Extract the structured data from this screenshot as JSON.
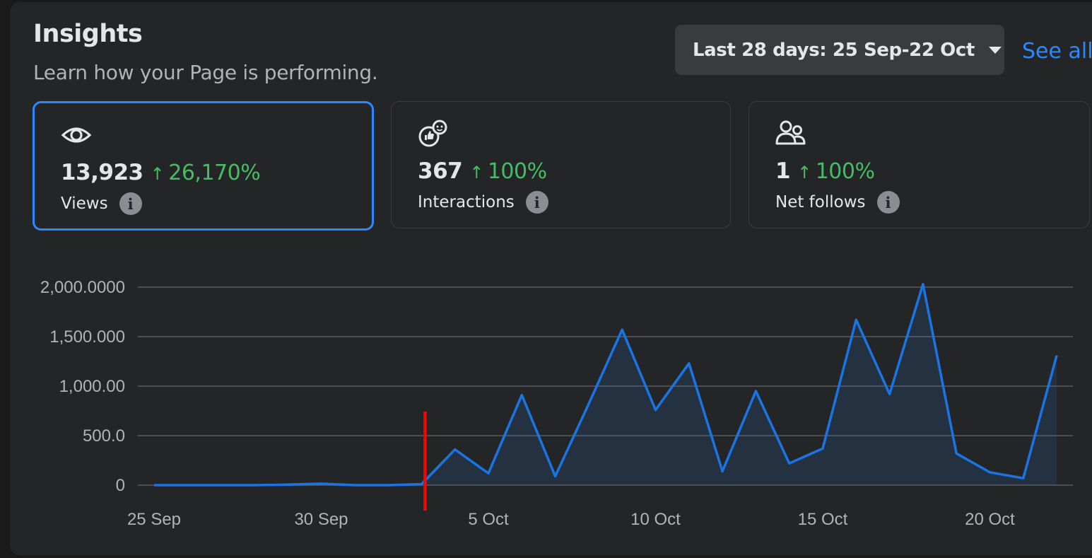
{
  "header": {
    "title": "Insights",
    "subtitle": "Learn how your Page is performing.",
    "date_range_label": "Last 28 days: 25 Sep-22 Oct",
    "see_all_label": "See all"
  },
  "metrics": [
    {
      "icon": "eye-icon",
      "value": "13,923",
      "change": "26,170%",
      "name": "Views",
      "selected": true
    },
    {
      "icon": "thumbs-up-emoji-icon",
      "value": "367",
      "change": "100%",
      "name": "Interactions",
      "selected": false
    },
    {
      "icon": "people-icon",
      "value": "1",
      "change": "100%",
      "name": "Net follows",
      "selected": false
    }
  ],
  "colors": {
    "accent": "#2d88ff",
    "positive": "#45bd62",
    "marker": "#ff0000",
    "line": "#1b74e4"
  },
  "chart_data": {
    "type": "area",
    "x": [
      "25 Sep",
      "26 Sep",
      "27 Sep",
      "28 Sep",
      "29 Sep",
      "30 Sep",
      "1 Oct",
      "2 Oct",
      "3 Oct",
      "4 Oct",
      "5 Oct",
      "6 Oct",
      "7 Oct",
      "8 Oct",
      "9 Oct",
      "10 Oct",
      "11 Oct",
      "12 Oct",
      "13 Oct",
      "14 Oct",
      "15 Oct",
      "16 Oct",
      "17 Oct",
      "18 Oct",
      "19 Oct",
      "20 Oct",
      "21 Oct",
      "22 Oct"
    ],
    "series": [
      {
        "values": [
          0,
          0,
          0,
          0,
          5,
          15,
          0,
          0,
          10,
          360,
          120,
          910,
          90,
          820,
          1570,
          760,
          1230,
          140,
          950,
          220,
          370,
          1670,
          920,
          2030,
          320,
          130,
          70,
          1310
        ]
      }
    ],
    "x_tick_labels": [
      "25 Sep",
      "30 Sep",
      "5 Oct",
      "10 Oct",
      "15 Oct",
      "20 Oct"
    ],
    "y_tick_labels": [
      "0",
      "500.0",
      "1,000.00",
      "1,500.000",
      "2,000.0000"
    ],
    "y_ticks": [
      0,
      500,
      1000,
      1500,
      2000
    ],
    "ylim": [
      0,
      2000
    ],
    "grid": true,
    "marker_at": "3 Oct"
  }
}
